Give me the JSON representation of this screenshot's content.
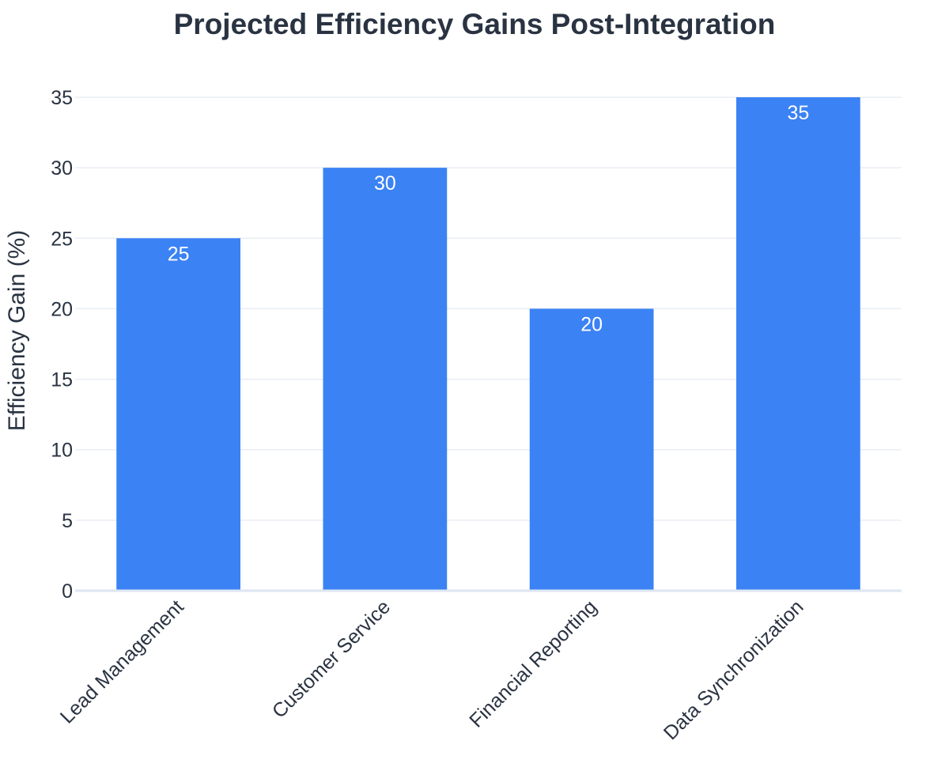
{
  "chart_data": {
    "type": "bar",
    "title": "Projected Efficiency Gains Post-Integration",
    "xlabel": "",
    "ylabel": "Efficiency Gain (%)",
    "categories": [
      "Lead Management",
      "Customer Service",
      "Financial Reporting",
      "Data Synchronization"
    ],
    "values": [
      25,
      30,
      20,
      35
    ],
    "data_labels": [
      "25",
      "30",
      "20",
      "35"
    ],
    "yticks": [
      0,
      5,
      10,
      15,
      20,
      25,
      30,
      35
    ],
    "ylim": [
      0,
      35
    ],
    "grid": true,
    "legend": "none",
    "colors": {
      "bar": "#3b82f4",
      "grid": "#e9eef4",
      "axis": "#dde6f2",
      "text": "#2a3342"
    }
  }
}
